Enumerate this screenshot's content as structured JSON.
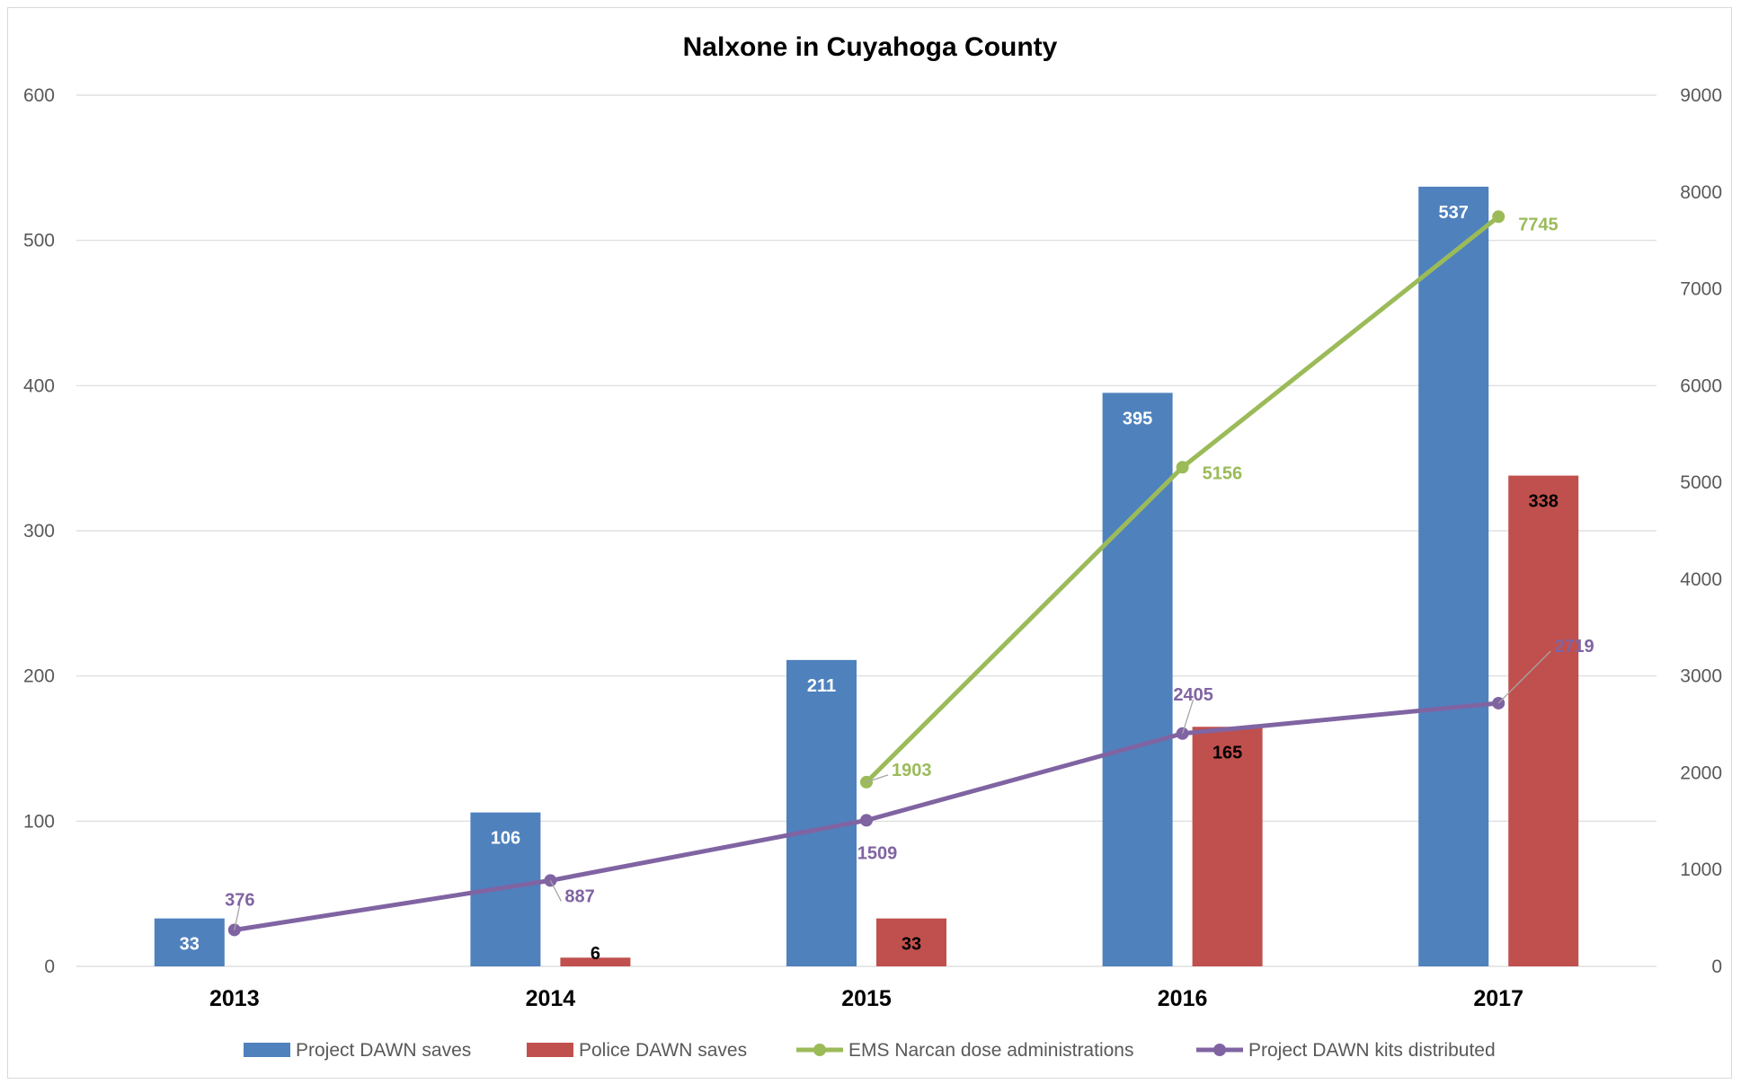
{
  "chart_data": {
    "type": "bar",
    "title": "Nalxone in Cuyahoga County",
    "categories": [
      "2013",
      "2014",
      "2015",
      "2016",
      "2017"
    ],
    "y_left": {
      "min": 0,
      "max": 600,
      "ticks": [
        "0",
        "100",
        "200",
        "300",
        "400",
        "500",
        "600"
      ]
    },
    "y_right": {
      "min": 0,
      "max": 9000,
      "ticks": [
        "0",
        "1000",
        "2000",
        "3000",
        "4000",
        "5000",
        "6000",
        "7000",
        "8000",
        "9000"
      ]
    },
    "grid": true,
    "legend_position": "bottom",
    "series": [
      {
        "name": "Project DAWN saves",
        "kind": "bar",
        "axis": "left",
        "color": "#4f81bd",
        "label_color": "#ffffff",
        "values": [
          33,
          106,
          211,
          395,
          537
        ],
        "labels": [
          "33",
          "106",
          "211",
          "395",
          "537"
        ]
      },
      {
        "name": "Police DAWN saves",
        "kind": "bar",
        "axis": "left",
        "color": "#c0504d",
        "label_color": "#000000",
        "values": [
          null,
          6,
          33,
          165,
          338
        ],
        "labels": [
          "",
          "6",
          "33",
          "165",
          "338"
        ]
      },
      {
        "name": "EMS Narcan dose administrations",
        "kind": "line",
        "axis": "right",
        "color": "#9bbb59",
        "label_color": "#9bbb59",
        "values": [
          null,
          null,
          1903,
          5156,
          7745
        ],
        "labels": [
          "",
          "",
          "1903",
          "5156",
          "7745"
        ]
      },
      {
        "name": "Project DAWN kits distributed",
        "kind": "line",
        "axis": "right",
        "color": "#8064a2",
        "label_color": "#8064a2",
        "values": [
          376,
          887,
          1509,
          2405,
          2719
        ],
        "labels": [
          "376",
          "887",
          "1509",
          "2405",
          "2719"
        ]
      }
    ]
  }
}
